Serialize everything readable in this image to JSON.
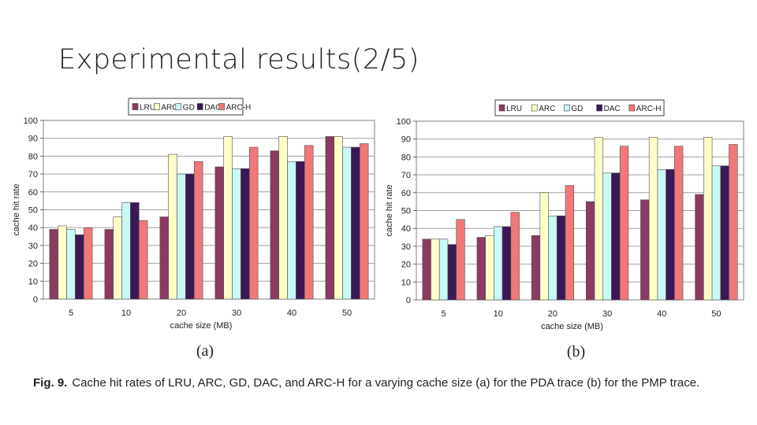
{
  "slide": {
    "title": "Experimental results(2/5)"
  },
  "caption": {
    "label": "Fig. 9.",
    "text": "Cache hit rates of LRU, ARC, GD, DAC, and ARC-H for a varying cache size (a) for the PDA trace (b) for the PMP trace."
  },
  "colors": {
    "LRU": "#8b3a62",
    "ARC": "#ffffc8",
    "GD": "#c8f8f8",
    "DAC": "#3a1858",
    "ARC-H": "#f07878"
  },
  "chart_data": [
    {
      "id": "a",
      "type": "bar",
      "panel_label": "(a)",
      "xlabel": "cache size (MB)",
      "ylabel": "cache hit rate",
      "ylim": [
        0,
        100
      ],
      "yticks": [
        0,
        10,
        20,
        30,
        40,
        50,
        60,
        70,
        80,
        90,
        100
      ],
      "grid": true,
      "legend": "top",
      "categories": [
        "5",
        "10",
        "20",
        "30",
        "40",
        "50"
      ],
      "series": [
        {
          "name": "LRU",
          "values": [
            39,
            39,
            46,
            74,
            83,
            91
          ]
        },
        {
          "name": "ARC",
          "values": [
            41,
            46,
            81,
            91,
            91,
            91
          ]
        },
        {
          "name": "GD",
          "values": [
            39,
            54,
            70,
            73,
            77,
            85
          ]
        },
        {
          "name": "DAC",
          "values": [
            36,
            54,
            70,
            73,
            77,
            85
          ]
        },
        {
          "name": "ARC-H",
          "values": [
            40,
            44,
            77,
            85,
            86,
            87
          ]
        }
      ]
    },
    {
      "id": "b",
      "type": "bar",
      "panel_label": "(b)",
      "xlabel": "cache size (MB)",
      "ylabel": "cache hit rate",
      "ylim": [
        0,
        100
      ],
      "yticks": [
        0,
        10,
        20,
        30,
        40,
        50,
        60,
        70,
        80,
        90,
        100
      ],
      "grid": true,
      "legend": "top",
      "categories": [
        "5",
        "10",
        "20",
        "30",
        "40",
        "50"
      ],
      "series": [
        {
          "name": "LRU",
          "values": [
            34,
            35,
            36,
            55,
            56,
            59
          ]
        },
        {
          "name": "ARC",
          "values": [
            34,
            36,
            60,
            91,
            91,
            91
          ]
        },
        {
          "name": "GD",
          "values": [
            34,
            41,
            47,
            71,
            73,
            75
          ]
        },
        {
          "name": "DAC",
          "values": [
            31,
            41,
            47,
            71,
            73,
            75
          ]
        },
        {
          "name": "ARC-H",
          "values": [
            45,
            49,
            64,
            86,
            86,
            87
          ]
        }
      ]
    }
  ]
}
